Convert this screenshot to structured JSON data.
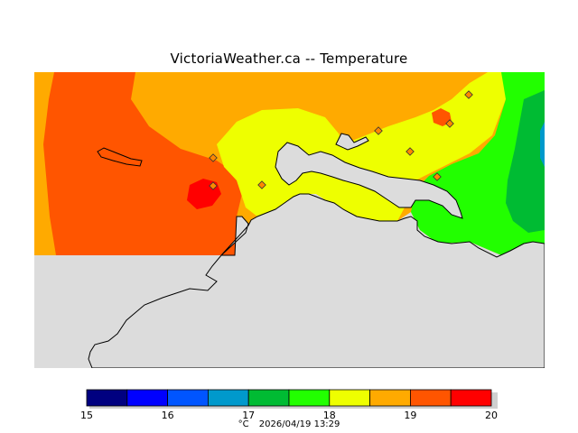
{
  "header": {
    "title": "VictoriaWeather.ca -- Temperature"
  },
  "legend": {
    "unit": "°C",
    "timestamp": "2026/04/19 13:29",
    "ticks": [
      "15",
      "16",
      "17",
      "18",
      "19",
      "20"
    ],
    "bins": [
      {
        "from": 15.0,
        "to": 15.5,
        "color": "#000080"
      },
      {
        "from": 15.5,
        "to": 16.0,
        "color": "#0000ff"
      },
      {
        "from": 16.0,
        "to": 16.5,
        "color": "#0055ff"
      },
      {
        "from": 16.5,
        "to": 17.0,
        "color": "#0099cc"
      },
      {
        "from": 17.0,
        "to": 17.5,
        "color": "#00bb33"
      },
      {
        "from": 17.5,
        "to": 18.0,
        "color": "#22ff00"
      },
      {
        "from": 18.0,
        "to": 18.5,
        "color": "#eeff00"
      },
      {
        "from": 18.5,
        "to": 19.0,
        "color": "#ffaa00"
      },
      {
        "from": 19.0,
        "to": 19.5,
        "color": "#ff5500"
      },
      {
        "from": 19.5,
        "to": 20.0,
        "color": "#ff0000"
      }
    ]
  },
  "colors": {
    "land": "#dcdcdc",
    "coastline": "#000000",
    "station_marker_fill": "#ff8800"
  },
  "stations": {
    "count": 8
  }
}
